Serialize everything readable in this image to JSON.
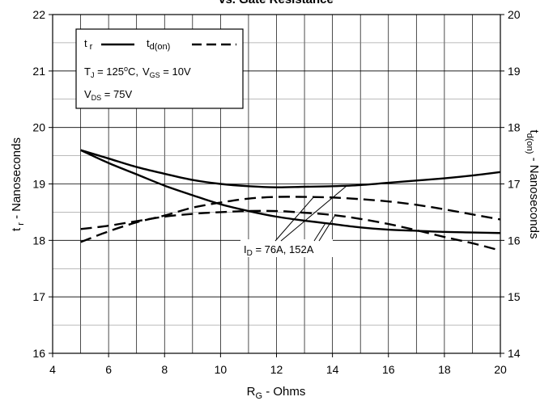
{
  "chart_data": {
    "type": "line",
    "title": "vs. Gate Resistance",
    "xlabel": {
      "main": "R",
      "sub": "G",
      "rest": " - Ohms"
    },
    "ylabel_left": {
      "main": "t",
      "sub": " r",
      "rest": " - Nanoseconds"
    },
    "ylabel_right": {
      "main": "t",
      "sub": "d(on)",
      "rest": " - Nanoseconds"
    },
    "xlim": [
      4,
      20
    ],
    "ylim_left": [
      16,
      22
    ],
    "ylim_right": [
      14,
      20
    ],
    "xticks": [
      "4",
      "6",
      "8",
      "10",
      "12",
      "14",
      "16",
      "18",
      "20"
    ],
    "yticks_left": [
      "16",
      "17",
      "18",
      "19",
      "20",
      "21",
      "22"
    ],
    "yticks_right": [
      "14",
      "15",
      "16",
      "17",
      "18",
      "19",
      "20"
    ],
    "grid": true,
    "legend": {
      "position": "top-left",
      "tr": {
        "main": "t",
        "sub": " r"
      },
      "tdon": {
        "main": "t",
        "sub": "d(on)"
      },
      "cond1": {
        "tj": "T",
        "tj_sub": "J",
        "tj_val": " = 125",
        "deg": "o",
        "tj_unit": "C,",
        "vgs": "V",
        "vgs_sub": "GS",
        "vgs_val": " = 10V"
      },
      "cond2": {
        "vds": "V",
        "vds_sub": "DS",
        "vds_val": " = 75V"
      }
    },
    "annotation": {
      "main": "I",
      "sub": "D",
      "rest": " = 76A, 152A"
    },
    "series": [
      {
        "axis": "left",
        "style": "solid",
        "id": "tr-76A",
        "x": [
          5,
          6,
          7,
          8,
          9,
          10,
          11,
          12,
          13,
          14,
          15,
          16,
          17,
          18,
          19,
          20
        ],
        "y": [
          19.6,
          19.45,
          19.3,
          19.18,
          19.07,
          19.0,
          18.96,
          18.94,
          18.95,
          18.96,
          18.98,
          19.02,
          19.06,
          19.1,
          19.15,
          19.21
        ]
      },
      {
        "axis": "left",
        "style": "solid",
        "id": "tr-152A",
        "x": [
          5,
          6,
          7,
          8,
          9,
          10,
          11,
          12,
          13,
          14,
          15,
          16,
          17,
          18,
          19,
          20
        ],
        "y": [
          19.6,
          19.37,
          19.17,
          18.97,
          18.8,
          18.64,
          18.52,
          18.42,
          18.35,
          18.29,
          18.23,
          18.19,
          18.17,
          18.15,
          18.14,
          18.13
        ]
      },
      {
        "axis": "right",
        "style": "dashed",
        "id": "tdon-76A",
        "x": [
          5,
          6,
          7,
          8,
          9,
          10,
          11,
          12,
          13,
          14,
          15,
          16,
          17,
          18,
          19,
          20
        ],
        "y": [
          16.2,
          16.26,
          16.34,
          16.42,
          16.47,
          16.5,
          16.52,
          16.52,
          16.49,
          16.45,
          16.38,
          16.29,
          16.18,
          16.06,
          15.95,
          15.82
        ]
      },
      {
        "axis": "right",
        "style": "dashed",
        "id": "tdon-152A",
        "x": [
          5,
          6,
          7,
          8,
          9,
          10,
          11,
          12,
          13,
          14,
          15,
          16,
          17,
          18,
          19,
          20
        ],
        "y": [
          15.97,
          16.16,
          16.32,
          16.44,
          16.58,
          16.67,
          16.74,
          16.77,
          16.77,
          16.76,
          16.73,
          16.69,
          16.63,
          16.55,
          16.46,
          16.37
        ]
      }
    ]
  }
}
